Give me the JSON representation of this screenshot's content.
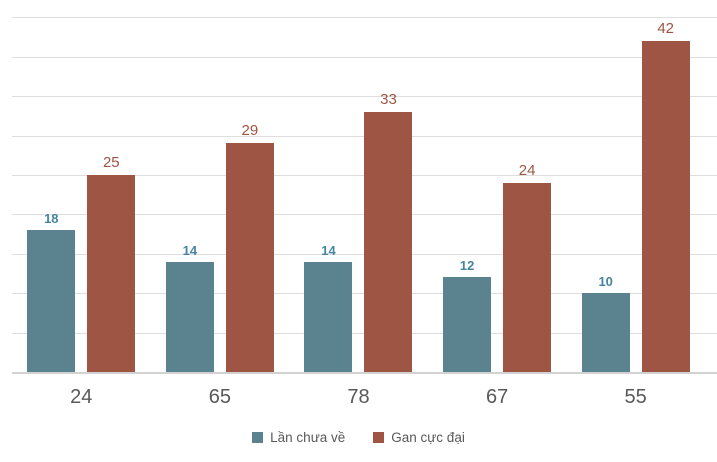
{
  "chart_data": {
    "type": "bar",
    "title": "",
    "xlabel": "",
    "ylabel": "",
    "categories": [
      "24",
      "65",
      "78",
      "67",
      "55"
    ],
    "series": [
      {
        "name": "Lần chưa về",
        "values": [
          18,
          14,
          14,
          12,
          10
        ],
        "color": "#5a828f",
        "label_color": "#4585a1",
        "label_bold": true,
        "label_size": 13
      },
      {
        "name": "Gan cực đại",
        "values": [
          25,
          29,
          33,
          24,
          42
        ],
        "color": "#9e5544",
        "label_color": "#9e5544",
        "label_bold": false,
        "label_size": 15
      }
    ],
    "ylim": [
      0,
      47.2
    ],
    "gridline_step": 5,
    "grid": true,
    "y_axis_labels_visible": false,
    "data_labels": true,
    "legend_position": "bottom"
  },
  "colors": {
    "background": "#ffffff",
    "gridline": "#dedede",
    "axis_line": "#d2d2d2",
    "x_axis_label_text": "#595959",
    "legend_text": "#595959"
  }
}
